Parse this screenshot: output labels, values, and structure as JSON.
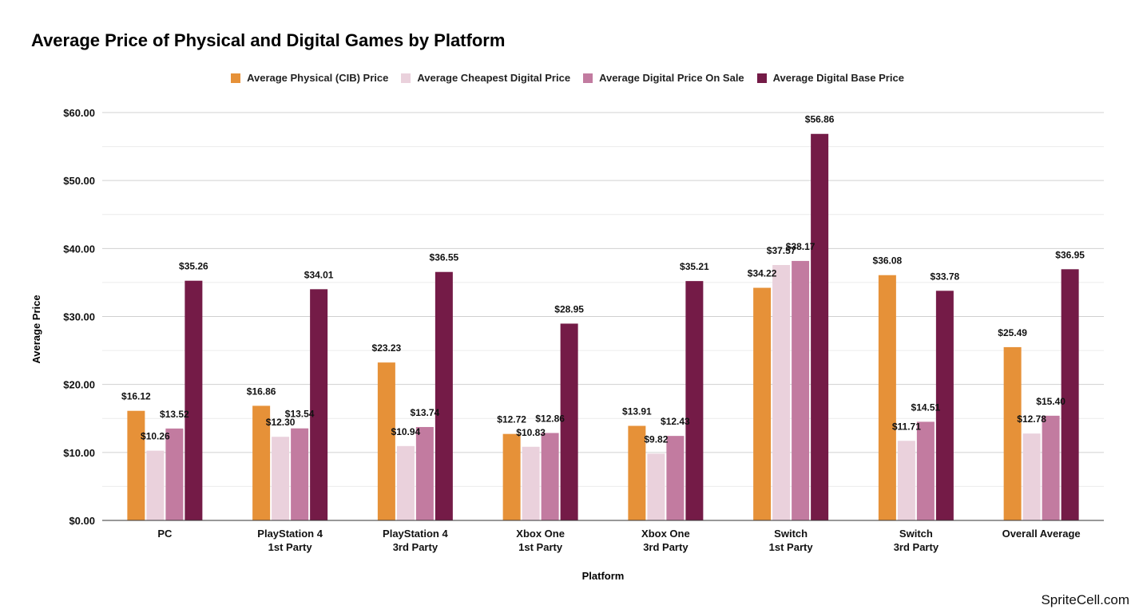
{
  "chart_data": {
    "type": "bar",
    "title": "Average Price of Physical and Digital Games by Platform",
    "xlabel": "Platform",
    "ylabel": "Average Price",
    "ylim": [
      0,
      60
    ],
    "yticks": [
      "$0.00",
      "$10.00",
      "$20.00",
      "$30.00",
      "$40.00",
      "$50.00",
      "$60.00"
    ],
    "grid": true,
    "legend_position": "top",
    "categories": [
      [
        "PC"
      ],
      [
        "PlayStation 4",
        "1st Party"
      ],
      [
        "PlayStation 4",
        "3rd Party"
      ],
      [
        "Xbox One",
        "1st Party"
      ],
      [
        "Xbox One",
        "3rd Party"
      ],
      [
        "Switch",
        "1st Party"
      ],
      [
        "Switch",
        "3rd Party"
      ],
      [
        "Overall Average"
      ]
    ],
    "series": [
      {
        "name": "Average Physical (CIB) Price",
        "color": "#E69138",
        "values": [
          16.12,
          16.86,
          23.23,
          12.72,
          13.91,
          34.22,
          36.08,
          25.49
        ]
      },
      {
        "name": "Average Cheapest Digital Price",
        "color": "#EAD1DC",
        "values": [
          10.26,
          12.3,
          10.94,
          10.83,
          9.82,
          37.57,
          11.71,
          12.78
        ]
      },
      {
        "name": "Average Digital Price On Sale",
        "color": "#C27BA0",
        "values": [
          13.52,
          13.54,
          13.74,
          12.86,
          12.43,
          38.17,
          14.51,
          15.4
        ]
      },
      {
        "name": "Average Digital Base Price",
        "color": "#741B47",
        "values": [
          35.26,
          34.01,
          36.55,
          28.95,
          35.21,
          56.86,
          33.78,
          36.95
        ]
      }
    ]
  },
  "credit": "SpriteCell.com"
}
